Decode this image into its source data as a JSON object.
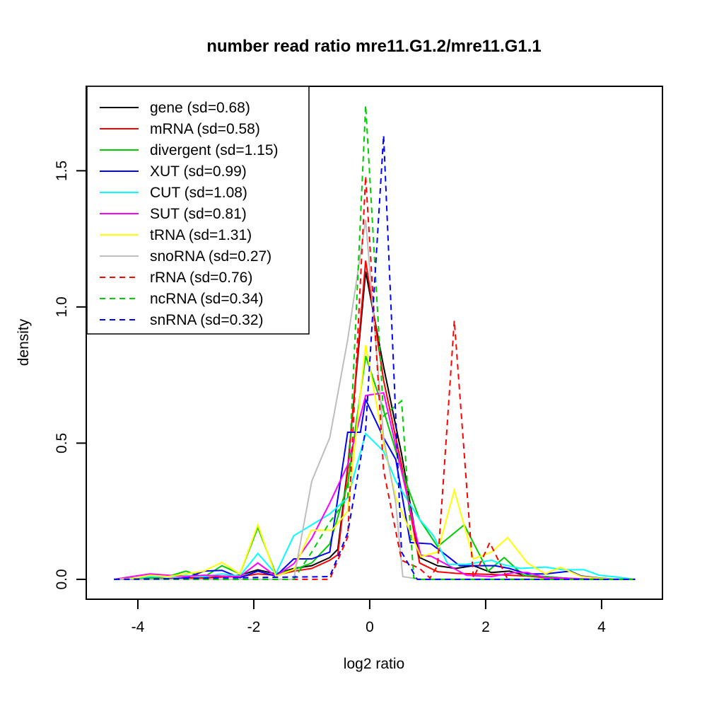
{
  "title": "number read ratio mre11.G1.2/mre11.G1.1",
  "chart_data": {
    "type": "line",
    "title": "number read ratio mre11.G1.2/mre11.G1.1",
    "xlabel": "log2 ratio",
    "ylabel": "density",
    "grid": false,
    "background": "#ffffff",
    "axis_color": "#000000",
    "legend_position": "topleft",
    "xlim": [
      -4.89,
      5.05
    ],
    "ylim": [
      -0.073,
      1.81
    ],
    "x_ticks": [
      {
        "v": -4,
        "label": "-4"
      },
      {
        "v": -2,
        "label": "-2"
      },
      {
        "v": 0,
        "label": "0"
      },
      {
        "v": 2,
        "label": "2"
      },
      {
        "v": 4,
        "label": "4"
      }
    ],
    "y_ticks": [
      {
        "v": 0.0,
        "label": "0.0"
      },
      {
        "v": 0.5,
        "label": "0.5"
      },
      {
        "v": 1.0,
        "label": "1.0"
      },
      {
        "v": 1.5,
        "label": "1.5"
      }
    ],
    "series": [
      {
        "name": "gene",
        "label": "gene (sd=0.68)",
        "sd": 0.68,
        "color": "#000000",
        "dash": false,
        "x": [
          -4.41,
          -3.79,
          -3.17,
          -2.86,
          -2.55,
          -2.24,
          -1.93,
          -1.62,
          -1.31,
          -1.0,
          -0.69,
          -0.55,
          -0.38,
          -0.07,
          0.24,
          0.55,
          0.86,
          1.17,
          1.48,
          1.79,
          2.1,
          2.41,
          2.72,
          3.03,
          3.34,
          3.65,
          4.58
        ],
        "y": [
          0,
          0,
          0.005,
          0.005,
          0.01,
          0.015,
          0.035,
          0.02,
          0.04,
          0.05,
          0.08,
          0.11,
          0.41,
          1.13,
          0.78,
          0.46,
          0.08,
          0.05,
          0.04,
          0.05,
          0.025,
          0.03,
          0.012,
          0.01,
          0.005,
          0,
          0
        ]
      },
      {
        "name": "mRNA",
        "label": "mRNA (sd=0.58)",
        "sd": 0.58,
        "color": "#ff0000",
        "dash": false,
        "x": [
          -4.41,
          -3.79,
          -3.17,
          -2.86,
          -2.55,
          -2.24,
          -1.93,
          -1.62,
          -1.31,
          -1.0,
          -0.69,
          -0.55,
          -0.38,
          -0.07,
          0.24,
          0.55,
          0.86,
          1.17,
          1.48,
          1.79,
          2.1,
          2.41,
          2.72,
          3.03,
          3.34,
          3.65,
          4.58
        ],
        "y": [
          0,
          0,
          0.003,
          0.005,
          0.008,
          0.01,
          0.02,
          0.015,
          0.03,
          0.04,
          0.07,
          0.09,
          0.4,
          1.17,
          0.73,
          0.42,
          0.06,
          0.028,
          0.022,
          0.02,
          0.018,
          0.015,
          0.012,
          0.006,
          0.003,
          0,
          0
        ]
      },
      {
        "name": "divergent",
        "label": "divergent (sd=1.15)",
        "sd": 1.15,
        "color": "#00cd00",
        "dash": false,
        "x": [
          -4.41,
          -4.1,
          -3.79,
          -3.48,
          -3.17,
          -2.86,
          -2.55,
          -2.24,
          -1.93,
          -1.62,
          -1.31,
          -1.0,
          -0.69,
          -0.38,
          -0.07,
          0.24,
          0.55,
          0.86,
          1.17,
          1.63,
          2.04,
          2.32,
          2.65,
          3.03,
          3.34,
          3.65,
          4.58
        ],
        "y": [
          0,
          0.005,
          0.005,
          0.01,
          0.03,
          0.008,
          0.05,
          0.02,
          0.19,
          0.02,
          0.035,
          0.06,
          0.13,
          0.35,
          0.82,
          0.62,
          0.4,
          0.22,
          0.12,
          0.2,
          0.03,
          0.08,
          0.015,
          0.01,
          0.005,
          0,
          0
        ]
      },
      {
        "name": "XUT",
        "label": "XUT (sd=0.99)",
        "sd": 0.99,
        "color": "#0000ff",
        "dash": false,
        "x": [
          -4.41,
          -3.48,
          -3.17,
          -2.86,
          -2.55,
          -2.24,
          -1.93,
          -1.62,
          -1.31,
          -1.0,
          -0.69,
          -0.38,
          -0.16,
          -0.07,
          0.24,
          0.45,
          0.7,
          1.06,
          1.31,
          1.55,
          2.16,
          2.41,
          2.72,
          3.03,
          3.46,
          3.65,
          3.96,
          4.27,
          4.58
        ],
        "y": [
          0,
          0,
          0.005,
          0.03,
          0.033,
          0.006,
          0.03,
          0.012,
          0.075,
          0.075,
          0.1,
          0.54,
          0.54,
          0.66,
          0.52,
          0.44,
          0.135,
          0.13,
          0.09,
          0.05,
          0.05,
          0.04,
          0.02,
          0.02,
          0.03,
          0.012,
          0.005,
          0,
          0
        ]
      },
      {
        "name": "CUT",
        "label": "CUT (sd=1.08)",
        "sd": 1.08,
        "color": "#00ffff",
        "dash": false,
        "x": [
          -4.41,
          -4.1,
          -3.79,
          -3.48,
          -3.17,
          -2.86,
          -2.55,
          -2.24,
          -1.93,
          -1.62,
          -1.31,
          -1.0,
          -0.69,
          -0.38,
          -0.07,
          0.24,
          0.45,
          0.86,
          1.1,
          1.35,
          1.67,
          2.1,
          2.3,
          2.6,
          3.03,
          3.34,
          3.7,
          3.96,
          4.27,
          4.58
        ],
        "y": [
          0,
          0.004,
          0.01,
          0.01,
          0.014,
          0.01,
          0.02,
          0.012,
          0.095,
          0.02,
          0.16,
          0.2,
          0.24,
          0.3,
          0.535,
          0.47,
          0.36,
          0.22,
          0.16,
          0.055,
          0.055,
          0.07,
          0.054,
          0.04,
          0.045,
          0.035,
          0.035,
          0.015,
          0.008,
          0
        ]
      },
      {
        "name": "SUT",
        "label": "SUT (sd=0.81)",
        "sd": 0.81,
        "color": "#ff00ff",
        "dash": false,
        "x": [
          -4.41,
          -4.1,
          -3.79,
          -3.48,
          -3.17,
          -2.86,
          -2.55,
          -2.24,
          -1.93,
          -1.62,
          -1.31,
          -1.0,
          -0.69,
          -0.38,
          -0.07,
          0.24,
          0.88,
          1.06,
          1.67,
          2.1,
          2.5,
          2.72,
          3.03,
          3.34,
          3.65,
          3.96,
          4.58
        ],
        "y": [
          0,
          0.01,
          0.02,
          0.015,
          0.01,
          0.015,
          0.012,
          0.01,
          0.06,
          0.012,
          0.057,
          0.15,
          0.28,
          0.42,
          0.675,
          0.685,
          0.088,
          0.085,
          0.015,
          0.01,
          0.025,
          0.025,
          0.006,
          0.005,
          0.002,
          0,
          0
        ]
      },
      {
        "name": "tRNA",
        "label": "tRNA (sd=1.31)",
        "sd": 1.31,
        "color": "#ffff00",
        "dash": false,
        "x": [
          -4.41,
          -4.1,
          -3.79,
          -3.48,
          -3.17,
          -2.86,
          -2.55,
          -2.24,
          -1.93,
          -1.62,
          -1.31,
          -1.01,
          -0.65,
          -0.38,
          -0.07,
          0.24,
          0.45,
          0.88,
          1.17,
          1.46,
          1.79,
          2.1,
          2.38,
          2.72,
          3.03,
          3.29,
          3.65,
          3.96,
          4.27,
          4.58
        ],
        "y": [
          0,
          0.003,
          0.015,
          0.01,
          0.02,
          0.03,
          0.062,
          0.02,
          0.2,
          0.012,
          0.036,
          0.18,
          0.18,
          0.25,
          0.86,
          0.5,
          0.3,
          0.083,
          0.1,
          0.327,
          0.075,
          0.1,
          0.153,
          0.06,
          0.02,
          0.044,
          0.01,
          0.004,
          0,
          0
        ]
      },
      {
        "name": "snoRNA",
        "label": "snoRNA (sd=0.27)",
        "sd": 0.27,
        "color": "#bebebe",
        "dash": false,
        "x": [
          -4.41,
          -1.31,
          -1.0,
          -0.69,
          -0.38,
          -0.07,
          0.24,
          0.45,
          0.57,
          0.86,
          4.58
        ],
        "y": [
          0,
          0,
          0.36,
          0.52,
          0.88,
          1.32,
          0.52,
          0.28,
          0.01,
          0,
          0
        ]
      },
      {
        "name": "rRNA",
        "label": "rRNA (sd=0.76)",
        "sd": 0.76,
        "color": "#ff0000",
        "dash": true,
        "x": [
          -4.41,
          -0.69,
          -0.38,
          -0.07,
          0.24,
          0.55,
          0.86,
          1.04,
          1.17,
          1.46,
          1.79,
          2.07,
          2.38,
          4.58
        ],
        "y": [
          0,
          0,
          0.155,
          1.48,
          0.4,
          0.07,
          0.04,
          0.005,
          0.05,
          0.95,
          0.005,
          0.135,
          0,
          0
        ]
      },
      {
        "name": "ncRNA",
        "label": "ncRNA (sd=0.34)",
        "sd": 0.34,
        "color": "#00cd00",
        "dash": true,
        "x": [
          -4.41,
          -1.31,
          -1.0,
          -0.69,
          -0.38,
          -0.07,
          0.24,
          0.55,
          0.76,
          0.86,
          4.58
        ],
        "y": [
          0,
          0,
          0.1,
          0.21,
          0.3,
          1.74,
          0.6,
          0.655,
          0.005,
          0,
          0
        ]
      },
      {
        "name": "snRNA",
        "label": "snRNA (sd=0.32)",
        "sd": 0.32,
        "color": "#0000ff",
        "dash": true,
        "x": [
          -4.41,
          -0.69,
          -0.38,
          -0.07,
          0.24,
          0.55,
          0.82,
          4.58
        ],
        "y": [
          0,
          0.01,
          0.17,
          0.55,
          1.63,
          0.1,
          0,
          0
        ]
      }
    ]
  }
}
